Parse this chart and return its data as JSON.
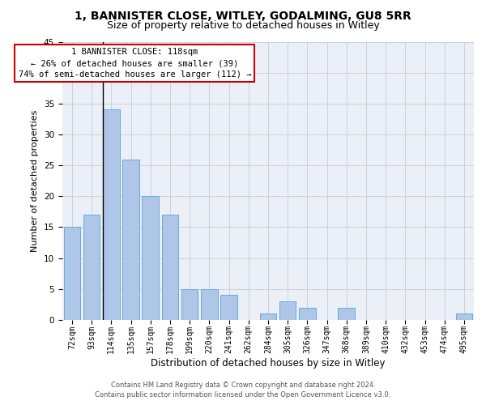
{
  "title1": "1, BANNISTER CLOSE, WITLEY, GODALMING, GU8 5RR",
  "title2": "Size of property relative to detached houses in Witley",
  "xlabel": "Distribution of detached houses by size in Witley",
  "ylabel": "Number of detached properties",
  "categories": [
    "72sqm",
    "93sqm",
    "114sqm",
    "135sqm",
    "157sqm",
    "178sqm",
    "199sqm",
    "220sqm",
    "241sqm",
    "262sqm",
    "284sqm",
    "305sqm",
    "326sqm",
    "347sqm",
    "368sqm",
    "389sqm",
    "410sqm",
    "432sqm",
    "453sqm",
    "474sqm",
    "495sqm"
  ],
  "values": [
    15,
    17,
    34,
    26,
    20,
    17,
    5,
    5,
    4,
    0,
    1,
    3,
    2,
    0,
    2,
    0,
    0,
    0,
    0,
    0,
    1
  ],
  "bar_color": "#aec6e8",
  "bar_edge_color": "#6aaad4",
  "vline_index": 2,
  "annotation_line1": "1 BANNISTER CLOSE: 118sqm",
  "annotation_line2": "← 26% of detached houses are smaller (39)",
  "annotation_line3": "74% of semi-detached houses are larger (112) →",
  "annotation_box_color": "#ffffff",
  "annotation_box_edge_color": "#cc0000",
  "ylim_max": 45,
  "yticks": [
    0,
    5,
    10,
    15,
    20,
    25,
    30,
    35,
    40,
    45
  ],
  "grid_color": "#cccccc",
  "bg_color": "#eaeff8",
  "footer1": "Contains HM Land Registry data © Crown copyright and database right 2024.",
  "footer2": "Contains public sector information licensed under the Open Government Licence v3.0.",
  "title1_fontsize": 10,
  "title2_fontsize": 9,
  "tick_fontsize": 7,
  "ylabel_fontsize": 8,
  "xlabel_fontsize": 8.5,
  "ann_fontsize": 7.5,
  "footer_fontsize": 6
}
